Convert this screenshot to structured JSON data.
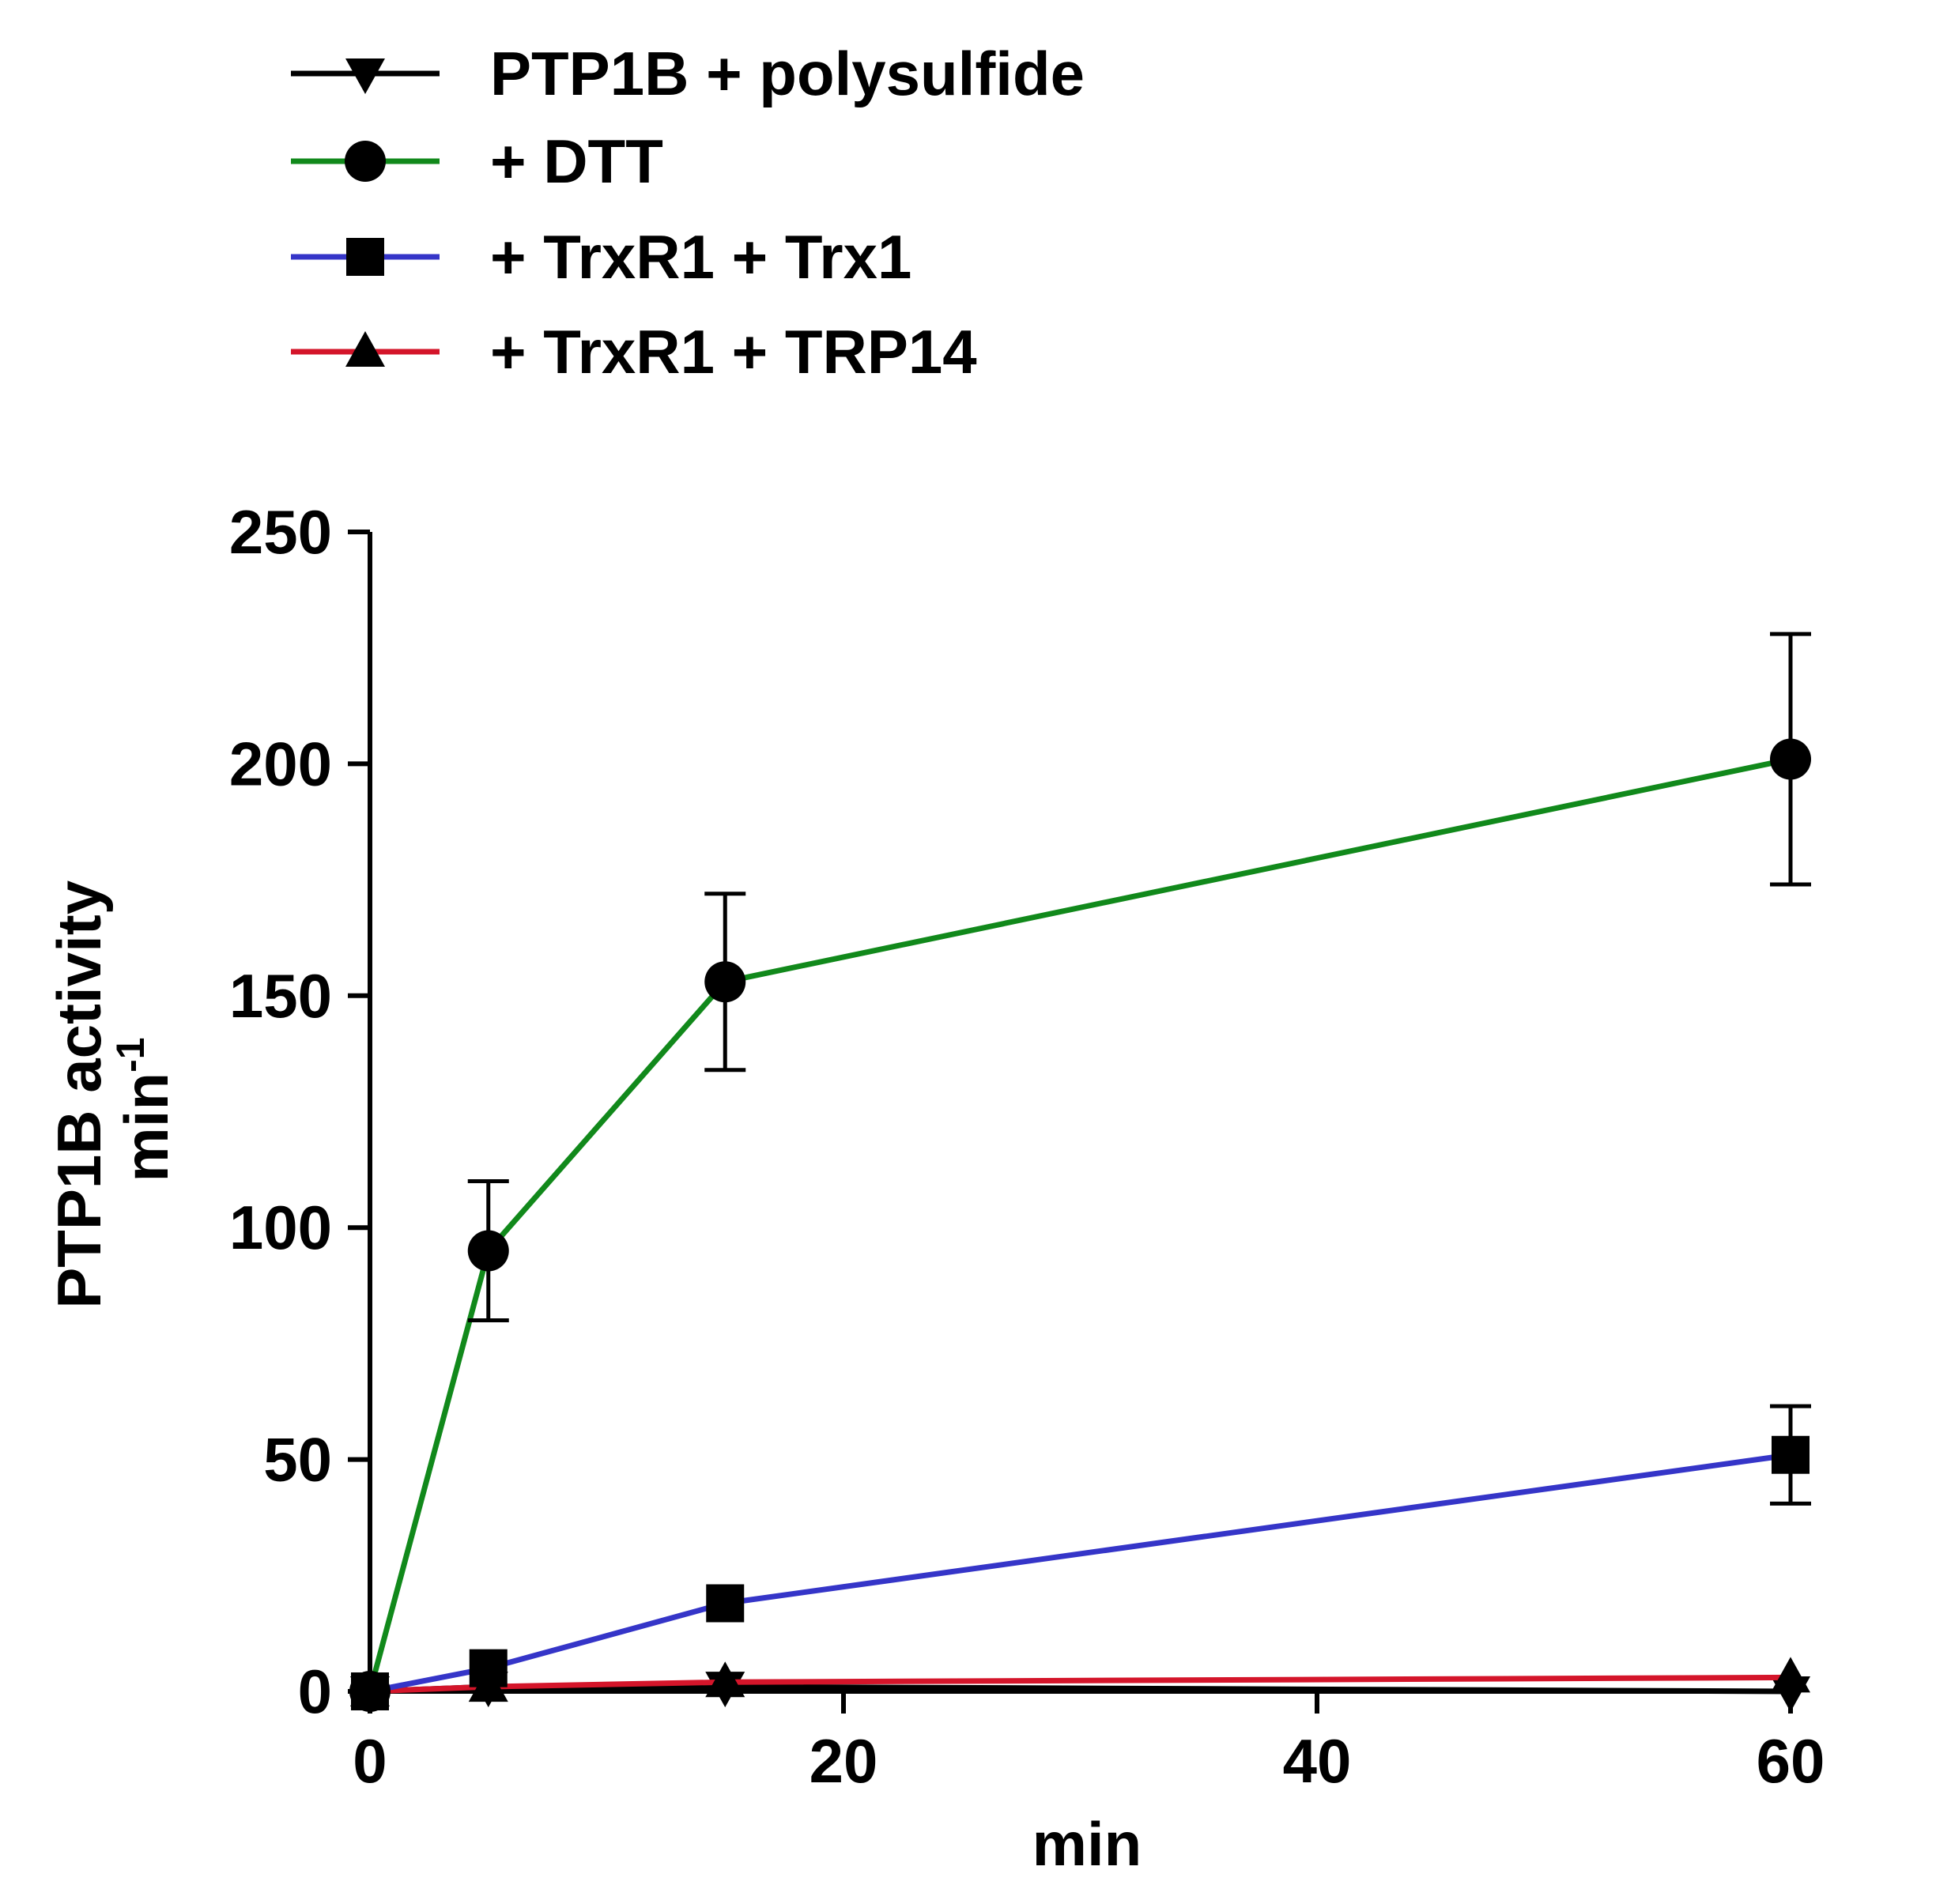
{
  "chart_data": {
    "type": "line",
    "title": "",
    "xlabel": "min",
    "ylabel": "PTP1B activity",
    "ylabel_unit": "min",
    "ylabel_unit_superscript": "-1",
    "xlim": [
      0,
      60
    ],
    "ylim": [
      0,
      250
    ],
    "xticks": [
      0,
      20,
      40,
      60
    ],
    "yticks": [
      0,
      50,
      100,
      150,
      200,
      250
    ],
    "x": [
      0,
      5,
      15,
      60
    ],
    "grid": false,
    "legend_position": "top-left",
    "series": [
      {
        "name": "PTP1B + polysulfide",
        "color": "#000000",
        "marker": "triangle-down",
        "values": [
          0,
          1,
          1,
          0
        ],
        "errors": [
          0,
          0,
          0,
          0
        ]
      },
      {
        "name": "+ DTT",
        "color": "#11891b",
        "marker": "circle",
        "values": [
          0,
          95,
          153,
          201
        ],
        "errors": [
          0,
          15,
          19,
          27
        ]
      },
      {
        "name": "+ TrxR1 + Trx1",
        "color": "#3535c8",
        "marker": "square",
        "values": [
          0,
          5,
          19,
          51
        ],
        "errors": [
          0,
          0,
          0,
          10.5
        ]
      },
      {
        "name": "+ TrxR1 + TRP14",
        "color": "#d4152a",
        "marker": "triangle-up",
        "values": [
          0,
          1,
          2,
          3
        ],
        "errors": [
          0,
          0,
          0,
          0
        ]
      }
    ]
  }
}
